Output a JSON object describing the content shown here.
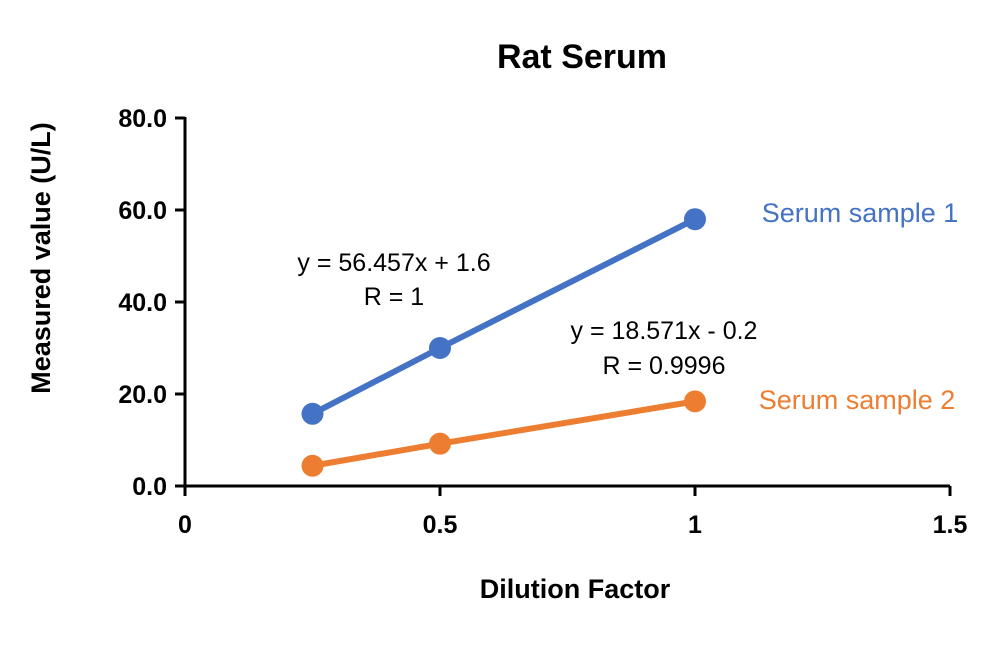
{
  "chart_data": {
    "type": "scatter",
    "title": "Rat Serum",
    "xlabel": "Dilution Factor",
    "ylabel": "Measured value (U/L)",
    "xlim": [
      0,
      1.5
    ],
    "ylim": [
      0,
      80
    ],
    "xticks": [
      "0",
      "0.5",
      "1",
      "1.5"
    ],
    "yticks": [
      "0.0",
      "20.0",
      "40.0",
      "60.0",
      "80.0"
    ],
    "grid": false,
    "series": [
      {
        "name": "Serum sample 1",
        "color": "#4472C4",
        "x": [
          0.25,
          0.5,
          1.0
        ],
        "y": [
          15.7,
          30.0,
          58.0
        ],
        "trendline": {
          "slope": 56.457,
          "intercept": 1.6
        },
        "equation": "y = 56.457x + 1.6",
        "r_text": "R = 1"
      },
      {
        "name": "Serum sample 2",
        "color": "#ED7D31",
        "x": [
          0.25,
          0.5,
          1.0
        ],
        "y": [
          4.4,
          9.2,
          18.4
        ],
        "trendline": {
          "slope": 18.571,
          "intercept": -0.2
        },
        "equation": "y = 18.571x - 0.2",
        "r_text": "R = 0.9996"
      }
    ]
  }
}
